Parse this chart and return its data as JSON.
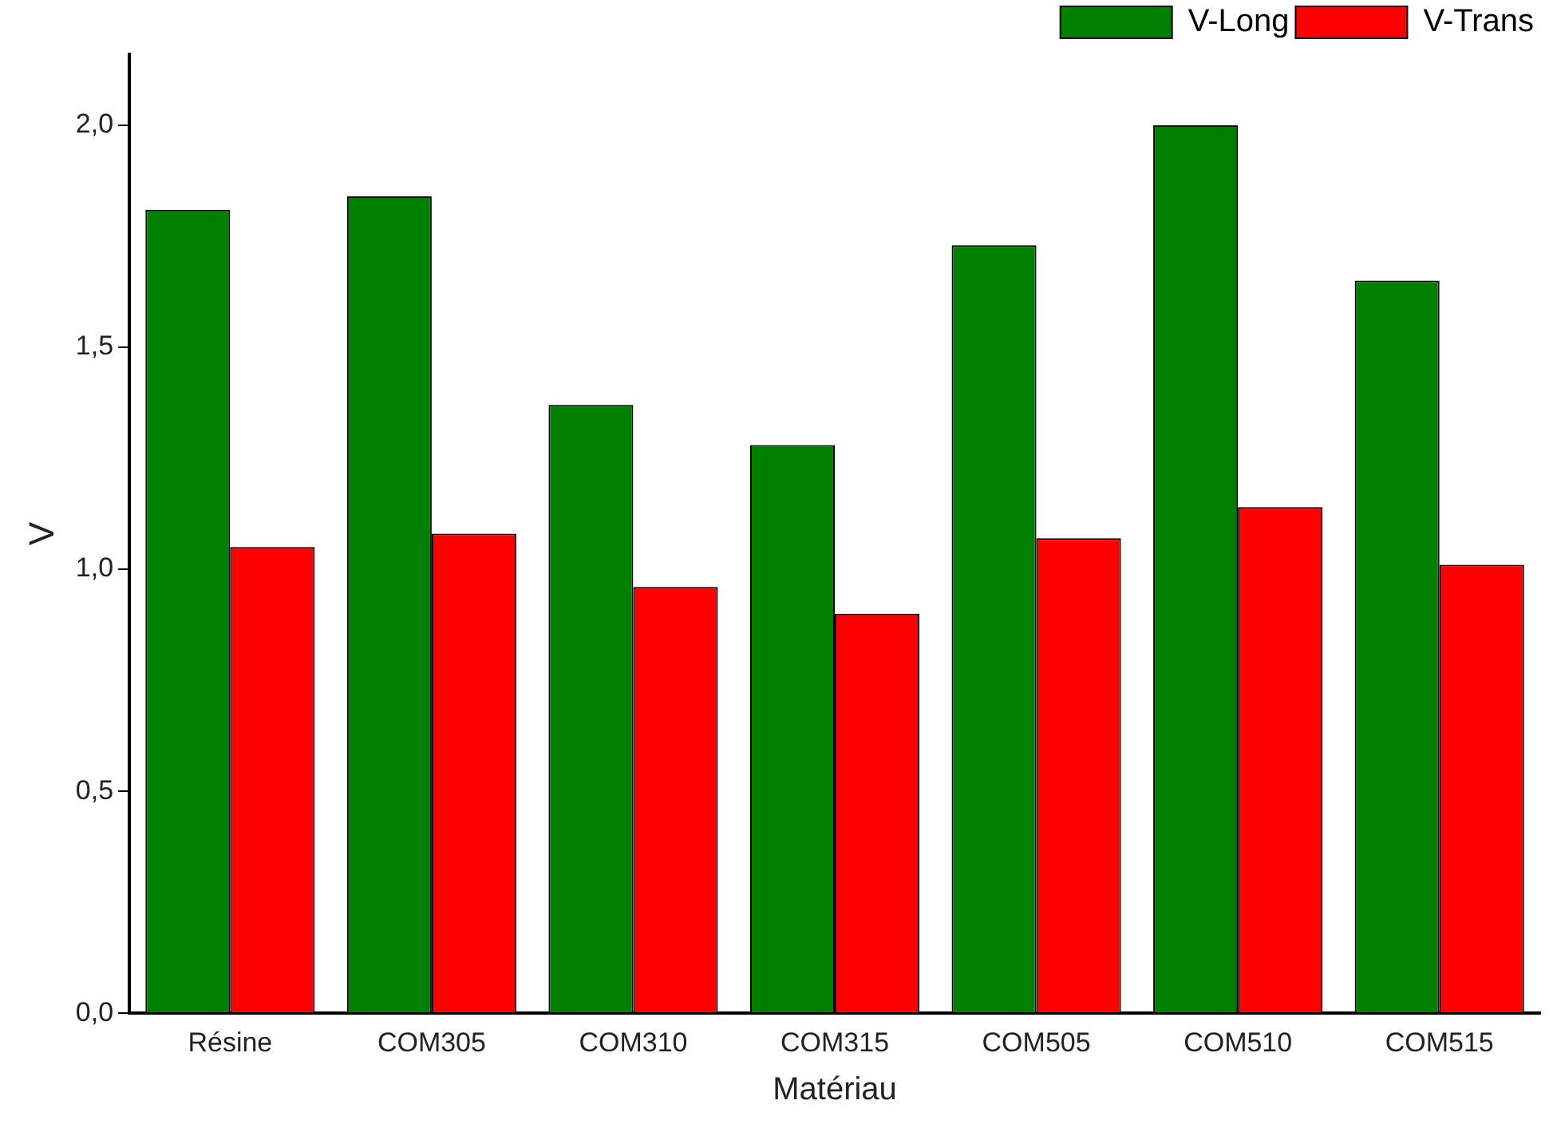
{
  "chart_data": {
    "type": "bar",
    "xlabel": "Matériau",
    "ylabel": "V",
    "categories": [
      "Résine",
      "COM305",
      "COM310",
      "COM315",
      "COM505",
      "COM510",
      "COM515"
    ],
    "series": [
      {
        "name": "V-Long",
        "color": "#008000",
        "values": [
          1.81,
          1.84,
          1.37,
          1.28,
          1.73,
          2.0,
          1.65
        ]
      },
      {
        "name": "V-Trans",
        "color": "#ff0000",
        "values": [
          1.05,
          1.08,
          0.96,
          0.9,
          1.07,
          1.14,
          1.01
        ]
      }
    ],
    "ylim": [
      0,
      2.16
    ],
    "yticks": [
      {
        "value": 0,
        "label": "0,0"
      },
      {
        "value": 0.5,
        "label": "0,5"
      },
      {
        "value": 1,
        "label": "1,0"
      },
      {
        "value": 1.5,
        "label": "1,5"
      },
      {
        "value": 2,
        "label": "2,0"
      }
    ],
    "grid": false,
    "legend": "top right"
  }
}
